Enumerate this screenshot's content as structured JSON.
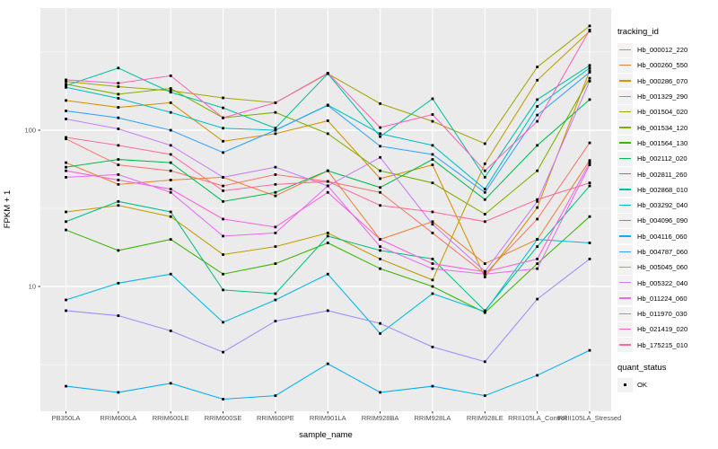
{
  "chart_data": {
    "type": "line",
    "xlabel": "sample_name",
    "ylabel": "FPKM + 1",
    "y_scale": "log10",
    "y_major_ticks": [
      100,
      10
    ],
    "y_minor_ticks": [
      316.2,
      31.62,
      3.162
    ],
    "ylim": [
      1.6,
      600
    ],
    "grid": true,
    "panel_bg": "#EBEBEB",
    "grid_color": "#FFFFFF",
    "tick_label_color": "#4D4D4D",
    "point_color": "#000000",
    "legend_title": "tracking_id",
    "legend2_title": "quant_status",
    "legend2_items": [
      {
        "label": "OK"
      }
    ],
    "x_categories": [
      "PB350LA",
      "RRIM600LA",
      "RRIM600LE",
      "RRIM600SE",
      "RRIM600PE",
      "RRIM901LA",
      "RRIM928BA",
      "RRIM928LA",
      "RRIM928LE",
      "RRII105LA_Control",
      "RRII105LA_Stressed"
    ],
    "series": [
      {
        "name": "Hb_000012_220",
        "color": "#F8766D",
        "values": [
          88,
          60,
          55,
          44,
          52,
          47,
          40,
          22,
          12,
          27,
          83
        ]
      },
      {
        "name": "Hb_000260_550",
        "color": "#EA8331",
        "values": [
          62,
          45,
          48,
          50,
          38,
          55,
          20,
          26,
          14,
          20,
          64
        ]
      },
      {
        "name": "Hb_000286_070",
        "color": "#D89000",
        "values": [
          155,
          140,
          150,
          85,
          95,
          115,
          49,
          60,
          11.5,
          32,
          240
        ]
      },
      {
        "name": "Hb_001329_290",
        "color": "#C09B00",
        "values": [
          30,
          33,
          28,
          16,
          18,
          22,
          15,
          11,
          61,
          209,
          430
        ]
      },
      {
        "name": "Hb_001504_020",
        "color": "#A3A500",
        "values": [
          205,
          190,
          179,
          161,
          150,
          230,
          148,
          114,
          82,
          254,
          465
        ]
      },
      {
        "name": "Hb_001534_120",
        "color": "#7CAE00",
        "values": [
          197,
          170,
          185,
          120,
          130,
          95,
          55,
          46,
          29,
          55,
          215
        ]
      },
      {
        "name": "Hb_001564_130",
        "color": "#39B600",
        "values": [
          23,
          17,
          20,
          12,
          14,
          19,
          13,
          10,
          6.8,
          14,
          28
        ]
      },
      {
        "name": "Hb_002112_020",
        "color": "#00BB4E",
        "values": [
          58,
          65,
          62,
          35,
          40,
          55,
          43,
          65,
          36,
          80,
          157
        ]
      },
      {
        "name": "Hb_002811_260",
        "color": "#00BF7D",
        "values": [
          26,
          35,
          30,
          9.5,
          9,
          21,
          17,
          15,
          7,
          18,
          44
        ]
      },
      {
        "name": "Hb_002868_010",
        "color": "#00C1A3",
        "values": [
          193,
          250,
          175,
          139,
          103,
          230,
          91,
          159,
          50,
          157,
          260
        ]
      },
      {
        "name": "Hb_003292_040",
        "color": "#00BFC4",
        "values": [
          188,
          160,
          130,
          103,
          100,
          145,
          95,
          80,
          42,
          142,
          250
        ]
      },
      {
        "name": "Hb_004096_090",
        "color": "#00BAE0",
        "values": [
          8.2,
          10.5,
          12,
          5.9,
          8.2,
          12,
          5,
          9,
          6.9,
          20,
          19
        ]
      },
      {
        "name": "Hb_004116_060",
        "color": "#00B0F6",
        "values": [
          2.3,
          2.1,
          2.4,
          1.9,
          2,
          3.2,
          2.1,
          2.3,
          2,
          2.7,
          3.9
        ]
      },
      {
        "name": "Hb_004787_060",
        "color": "#35A2FF",
        "values": [
          133,
          120,
          100,
          72,
          100,
          144,
          79,
          70,
          40,
          125,
          235
        ]
      },
      {
        "name": "Hb_005045_060",
        "color": "#9590FF",
        "values": [
          7,
          6.5,
          5.2,
          3.8,
          6,
          7,
          5.8,
          4.1,
          3.3,
          8.3,
          15
        ]
      },
      {
        "name": "Hb_005322_040",
        "color": "#C77CFF",
        "values": [
          118,
          102,
          80,
          50,
          58,
          44,
          67,
          25,
          12.5,
          35,
          206
        ]
      },
      {
        "name": "Hb_011224_060",
        "color": "#E76BF3",
        "values": [
          50,
          52,
          40,
          21,
          22,
          44,
          18,
          13,
          12,
          13,
          60
        ]
      },
      {
        "name": "Hb_011970_030",
        "color": "#FA62DB",
        "values": [
          55,
          48,
          42,
          27,
          24,
          40,
          20,
          14,
          12.4,
          15,
          62
        ]
      },
      {
        "name": "Hb_021419_020",
        "color": "#FF62BC",
        "values": [
          210,
          200,
          223,
          120,
          150,
          232,
          104,
          126,
          55,
          114,
          438
        ]
      },
      {
        "name": "Hb_175215_010",
        "color": "#FF6A98",
        "values": [
          90,
          80,
          70,
          41,
          45,
          47,
          33,
          30,
          26,
          36,
          46
        ]
      }
    ]
  }
}
